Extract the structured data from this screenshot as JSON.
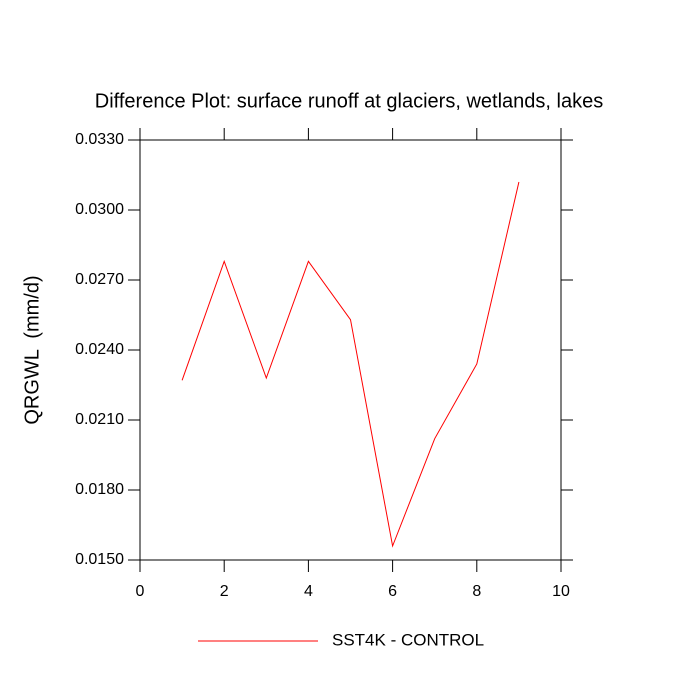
{
  "chart_data": {
    "type": "line",
    "title": "Difference Plot: surface runoff at glaciers, wetlands, lakes",
    "y_label": "QRGWL  (mm/d)",
    "x": [
      1,
      2,
      3,
      4,
      5,
      6,
      7,
      8,
      9
    ],
    "series": [
      {
        "name": "SST4K - CONTROL",
        "color": "#ff0000",
        "values": [
          0.0227,
          0.0278,
          0.0228,
          0.0278,
          0.0253,
          0.0156,
          0.0202,
          0.0234,
          0.0312
        ]
      }
    ],
    "xlim": [
      0,
      10
    ],
    "xticks": [
      0,
      2,
      4,
      6,
      8,
      10
    ],
    "ylim": [
      0.015,
      0.033
    ],
    "yticks": [
      {
        "value": 0.015,
        "label": "0.0150"
      },
      {
        "value": 0.018,
        "label": "0.0180"
      },
      {
        "value": 0.021,
        "label": "0.0210"
      },
      {
        "value": 0.024,
        "label": "0.0240"
      },
      {
        "value": 0.027,
        "label": "0.0270"
      },
      {
        "value": 0.03,
        "label": "0.0300"
      },
      {
        "value": 0.033,
        "label": "0.0330"
      }
    ],
    "grid": false
  }
}
